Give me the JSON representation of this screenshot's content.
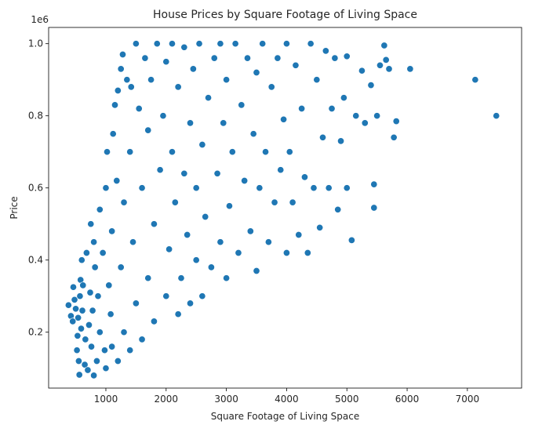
{
  "chart_data": {
    "type": "scatter",
    "title": "House Prices by Square Footage of Living Space",
    "xlabel": "Square Footage of Living Space",
    "ylabel": "Price",
    "y_offset_label": "1e6",
    "xlim": [
      50,
      7900
    ],
    "ylim": [
      45000,
      1045000
    ],
    "x_ticks": [
      1000,
      2000,
      3000,
      4000,
      5000,
      6000,
      7000
    ],
    "x_tick_labels": [
      "1000",
      "2000",
      "3000",
      "4000",
      "5000",
      "6000",
      "7000"
    ],
    "y_ticks": [
      200000,
      400000,
      600000,
      800000,
      1000000
    ],
    "y_tick_labels": [
      "0.2",
      "0.4",
      "0.6",
      "0.8",
      "1.0"
    ],
    "grid": false,
    "marker_color": "#1f77b4",
    "marker_edge_color": "#ffffff",
    "series": [
      {
        "points": [
          [
            380,
            275000
          ],
          [
            420,
            245000
          ],
          [
            450,
            230000
          ],
          [
            460,
            325000
          ],
          [
            480,
            290000
          ],
          [
            500,
            265000
          ],
          [
            520,
            150000
          ],
          [
            530,
            190000
          ],
          [
            540,
            240000
          ],
          [
            550,
            120000
          ],
          [
            560,
            82000
          ],
          [
            570,
            300000
          ],
          [
            580,
            345000
          ],
          [
            590,
            210000
          ],
          [
            600,
            400000
          ],
          [
            610,
            260000
          ],
          [
            620,
            330000
          ],
          [
            650,
            110000
          ],
          [
            660,
            180000
          ],
          [
            680,
            420000
          ],
          [
            700,
            95000
          ],
          [
            720,
            220000
          ],
          [
            740,
            310000
          ],
          [
            750,
            500000
          ],
          [
            760,
            160000
          ],
          [
            780,
            260000
          ],
          [
            800,
            80000
          ],
          [
            800,
            450000
          ],
          [
            820,
            380000
          ],
          [
            850,
            120000
          ],
          [
            870,
            300000
          ],
          [
            900,
            200000
          ],
          [
            900,
            540000
          ],
          [
            950,
            420000
          ],
          [
            980,
            150000
          ],
          [
            1000,
            100000
          ],
          [
            1000,
            600000
          ],
          [
            1020,
            700000
          ],
          [
            1050,
            330000
          ],
          [
            1080,
            250000
          ],
          [
            1100,
            160000
          ],
          [
            1100,
            480000
          ],
          [
            1120,
            750000
          ],
          [
            1150,
            830000
          ],
          [
            1180,
            620000
          ],
          [
            1200,
            120000
          ],
          [
            1200,
            870000
          ],
          [
            1250,
            380000
          ],
          [
            1250,
            930000
          ],
          [
            1280,
            970000
          ],
          [
            1300,
            200000
          ],
          [
            1300,
            560000
          ],
          [
            1350,
            900000
          ],
          [
            1400,
            150000
          ],
          [
            1400,
            700000
          ],
          [
            1420,
            880000
          ],
          [
            1450,
            450000
          ],
          [
            1500,
            280000
          ],
          [
            1500,
            1000000
          ],
          [
            1550,
            820000
          ],
          [
            1600,
            180000
          ],
          [
            1600,
            600000
          ],
          [
            1650,
            960000
          ],
          [
            1700,
            350000
          ],
          [
            1700,
            760000
          ],
          [
            1750,
            900000
          ],
          [
            1800,
            230000
          ],
          [
            1800,
            500000
          ],
          [
            1850,
            1000000
          ],
          [
            1900,
            650000
          ],
          [
            1950,
            800000
          ],
          [
            2000,
            300000
          ],
          [
            2000,
            950000
          ],
          [
            2050,
            430000
          ],
          [
            2100,
            700000
          ],
          [
            2100,
            1000000
          ],
          [
            2150,
            560000
          ],
          [
            2200,
            250000
          ],
          [
            2200,
            880000
          ],
          [
            2250,
            350000
          ],
          [
            2300,
            640000
          ],
          [
            2300,
            990000
          ],
          [
            2350,
            470000
          ],
          [
            2400,
            280000
          ],
          [
            2400,
            780000
          ],
          [
            2450,
            930000
          ],
          [
            2500,
            400000
          ],
          [
            2500,
            600000
          ],
          [
            2550,
            1000000
          ],
          [
            2600,
            300000
          ],
          [
            2600,
            720000
          ],
          [
            2650,
            520000
          ],
          [
            2700,
            850000
          ],
          [
            2750,
            380000
          ],
          [
            2800,
            960000
          ],
          [
            2850,
            640000
          ],
          [
            2900,
            450000
          ],
          [
            2900,
            1000000
          ],
          [
            2950,
            780000
          ],
          [
            3000,
            350000
          ],
          [
            3000,
            900000
          ],
          [
            3050,
            550000
          ],
          [
            3100,
            700000
          ],
          [
            3150,
            1000000
          ],
          [
            3200,
            420000
          ],
          [
            3250,
            830000
          ],
          [
            3300,
            620000
          ],
          [
            3350,
            960000
          ],
          [
            3400,
            480000
          ],
          [
            3450,
            750000
          ],
          [
            3500,
            370000
          ],
          [
            3500,
            920000
          ],
          [
            3550,
            600000
          ],
          [
            3600,
            1000000
          ],
          [
            3650,
            700000
          ],
          [
            3700,
            450000
          ],
          [
            3750,
            880000
          ],
          [
            3800,
            560000
          ],
          [
            3850,
            960000
          ],
          [
            3900,
            650000
          ],
          [
            3950,
            790000
          ],
          [
            4000,
            420000
          ],
          [
            4000,
            1000000
          ],
          [
            4050,
            700000
          ],
          [
            4100,
            560000
          ],
          [
            4150,
            940000
          ],
          [
            4200,
            470000
          ],
          [
            4250,
            820000
          ],
          [
            4300,
            630000
          ],
          [
            4350,
            420000
          ],
          [
            4400,
            1000000
          ],
          [
            4450,
            600000
          ],
          [
            4500,
            900000
          ],
          [
            4550,
            490000
          ],
          [
            4600,
            740000
          ],
          [
            4650,
            980000
          ],
          [
            4700,
            600000
          ],
          [
            4750,
            820000
          ],
          [
            4800,
            960000
          ],
          [
            4850,
            540000
          ],
          [
            4900,
            730000
          ],
          [
            4950,
            850000
          ],
          [
            5000,
            965000
          ],
          [
            5000,
            600000
          ],
          [
            5080,
            455000
          ],
          [
            5150,
            800000
          ],
          [
            5250,
            925000
          ],
          [
            5300,
            780000
          ],
          [
            5400,
            885000
          ],
          [
            5450,
            610000
          ],
          [
            5450,
            545000
          ],
          [
            5500,
            800000
          ],
          [
            5550,
            940000
          ],
          [
            5620,
            995000
          ],
          [
            5650,
            955000
          ],
          [
            5700,
            930000
          ],
          [
            5780,
            740000
          ],
          [
            5820,
            785000
          ],
          [
            6050,
            930000
          ],
          [
            7130,
            900000
          ],
          [
            7480,
            800000
          ]
        ]
      }
    ]
  }
}
